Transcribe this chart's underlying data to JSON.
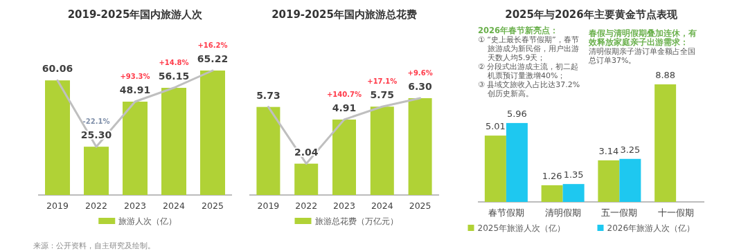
{
  "chart_data": [
    {
      "type": "bar",
      "title": "2019-2025年国内旅游人次",
      "categories": [
        "2019",
        "2022",
        "2023",
        "2024",
        "2025"
      ],
      "series": [
        {
          "name": "旅游人次（亿）",
          "color": "#b0d236",
          "values": [
            60.06,
            25.3,
            48.91,
            56.15,
            65.22
          ],
          "value_labels": [
            "60.06",
            "25.30",
            "48.91",
            "56.15",
            "65.22"
          ]
        },
        {
          "type": "line",
          "color": "#bfbfbf",
          "values": [
            60.06,
            25.3,
            48.91,
            56.15,
            65.22
          ]
        }
      ],
      "legend": "bottom",
      "annotations": [
        "-22.1%",
        "+93.3%",
        "+14.8%",
        "+16.2%",
        "来源：公开资料，自主研究及绘制。"
      ]
    },
    {
      "type": "bar",
      "title": "2019-2025年国内旅游总花费",
      "categories": [
        "2019",
        "2022",
        "2023",
        "2024",
        "2025"
      ],
      "series": [
        {
          "name": "旅游总花费（万亿元）",
          "color": "#b0d236",
          "values": [
            5.73,
            2.04,
            4.91,
            5.75,
            6.3
          ],
          "value_labels": [
            "5.73",
            "2.04",
            "4.91",
            "5.75",
            "6.30"
          ]
        },
        {
          "type": "line",
          "color": "#bfbfbf",
          "values": [
            5.73,
            2.04,
            4.91,
            5.75,
            6.3
          ]
        }
      ],
      "legend": "bottom",
      "annotations": [
        "+140.7%",
        "+17.1%",
        "+9.6%"
      ]
    },
    {
      "type": "bar",
      "title": "2025年与2026年主要黄金节点表现",
      "categories": [
        "春节假期",
        "清明假期",
        "五一假期",
        "十一假期"
      ],
      "series": [
        {
          "name": "2025年旅游人次（亿）",
          "color": "#b0d236",
          "values": [
            5.01,
            1.26,
            3.14,
            8.88
          ],
          "value_labels": [
            "5.01",
            "1.26",
            "3.14",
            "8.88"
          ]
        },
        {
          "name": "2026年旅游人次（亿）",
          "color": "#1ec8f0",
          "values": [
            5.96,
            1.35,
            3.25,
            null
          ],
          "value_labels": [
            "5.96",
            "1.35",
            "3.25",
            null
          ]
        }
      ],
      "legend": "bottom",
      "annotations": [
        "2026年春节新亮点：",
        "① “史上最长春节假期”，春节旅游成为新民俗，用户出游天数人均5.9天；",
        "② 分段式出游成主流，初二起机票预订量激增40%；",
        "③ 县域文旅收入占比达37.2%创历史新高。",
        "春假与清明假期叠加连休，有效释放家庭亲子出游需求：",
        "清明假期亲子游订单金额占全国总订单37%。"
      ]
    }
  ]
}
